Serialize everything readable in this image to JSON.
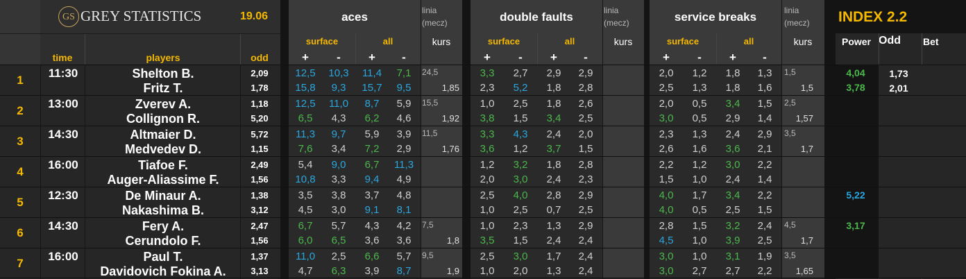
{
  "brand": {
    "monogram": "GS",
    "name": "GREY STATISTICS"
  },
  "date": "19.06",
  "index_title": "INDEX 2.2",
  "colors": {
    "yellow": "#f5b800",
    "blue": "#29a8e0",
    "green": "#4cb84c",
    "white": "#ffffff",
    "grey": "#d0d0d0"
  },
  "headers": {
    "time": "time",
    "players": "players",
    "odd": "odd",
    "aces": "aces",
    "double_faults": "double faults",
    "service_breaks": "service breaks",
    "linia": "linia",
    "mecz": "(mecz)",
    "kurs": "kurs",
    "surface": "surface",
    "all": "all",
    "plus": "+",
    "minus": "-",
    "power": "Power",
    "odd2": "Odd",
    "bet": "Bet"
  },
  "matches": [
    {
      "n": "1",
      "time": "11:30",
      "p1": "Shelton B.",
      "p2": "Fritz T.",
      "o1": "2,09",
      "o2": "1,78",
      "aces1": [
        [
          "12,5",
          "b"
        ],
        [
          "10,3",
          "b"
        ],
        [
          "11,4",
          "b"
        ],
        [
          "7,1",
          "g"
        ]
      ],
      "aces2": [
        [
          "15,8",
          "b"
        ],
        [
          "9,3",
          "b"
        ],
        [
          "15,7",
          "b"
        ],
        [
          "9,5",
          "b"
        ]
      ],
      "al": "24,5",
      "ak": "1,85",
      "df1": [
        [
          "3,3",
          "g"
        ],
        [
          "2,7",
          "w"
        ],
        [
          "2,9",
          "w"
        ],
        [
          "2,9",
          "w"
        ]
      ],
      "df2": [
        [
          "2,3",
          "w"
        ],
        [
          "5,2",
          "b"
        ],
        [
          "1,8",
          "w"
        ],
        [
          "2,8",
          "w"
        ]
      ],
      "dl": "",
      "dk": "",
      "sb1": [
        [
          "2,0",
          "w"
        ],
        [
          "1,2",
          "w"
        ],
        [
          "1,8",
          "w"
        ],
        [
          "1,3",
          "w"
        ]
      ],
      "sb2": [
        [
          "2,5",
          "w"
        ],
        [
          "1,3",
          "w"
        ],
        [
          "1,8",
          "w"
        ],
        [
          "1,6",
          "w"
        ]
      ],
      "sl": "1,5",
      "sk": "1,5",
      "pw1": [
        "4,04",
        "g"
      ],
      "pw2": [
        "3,78",
        "g"
      ],
      "od1": "1,73",
      "od2": "2,01"
    },
    {
      "n": "2",
      "time": "13:00",
      "p1": "Zverev A.",
      "p2": "Collignon R.",
      "o1": "1,18",
      "o2": "5,20",
      "aces1": [
        [
          "12,5",
          "b"
        ],
        [
          "11,0",
          "b"
        ],
        [
          "8,7",
          "b"
        ],
        [
          "5,9",
          "w"
        ]
      ],
      "aces2": [
        [
          "6,5",
          "g"
        ],
        [
          "4,3",
          "w"
        ],
        [
          "6,2",
          "g"
        ],
        [
          "4,6",
          "w"
        ]
      ],
      "al": "15,5",
      "ak": "1,92",
      "df1": [
        [
          "1,0",
          "w"
        ],
        [
          "2,5",
          "w"
        ],
        [
          "1,8",
          "w"
        ],
        [
          "2,6",
          "w"
        ]
      ],
      "df2": [
        [
          "3,8",
          "g"
        ],
        [
          "1,5",
          "w"
        ],
        [
          "3,4",
          "g"
        ],
        [
          "2,5",
          "w"
        ]
      ],
      "dl": "",
      "dk": "",
      "sb1": [
        [
          "2,0",
          "w"
        ],
        [
          "0,5",
          "w"
        ],
        [
          "3,4",
          "g"
        ],
        [
          "1,5",
          "w"
        ]
      ],
      "sb2": [
        [
          "3,0",
          "g"
        ],
        [
          "0,5",
          "w"
        ],
        [
          "2,9",
          "w"
        ],
        [
          "1,4",
          "w"
        ]
      ],
      "sl": "2,5",
      "sk": "1,57",
      "pw1": [
        "",
        ""
      ],
      "pw2": [
        "",
        ""
      ],
      "od1": "",
      "od2": ""
    },
    {
      "n": "3",
      "time": "14:30",
      "p1": "Altmaier D.",
      "p2": "Medvedev D.",
      "o1": "5,72",
      "o2": "1,15",
      "aces1": [
        [
          "11,3",
          "b"
        ],
        [
          "9,7",
          "b"
        ],
        [
          "5,9",
          "w"
        ],
        [
          "3,9",
          "w"
        ]
      ],
      "aces2": [
        [
          "7,6",
          "g"
        ],
        [
          "3,4",
          "w"
        ],
        [
          "7,2",
          "g"
        ],
        [
          "2,9",
          "w"
        ]
      ],
      "al": "11,5",
      "ak": "1,76",
      "df1": [
        [
          "3,3",
          "g"
        ],
        [
          "4,3",
          "b"
        ],
        [
          "2,4",
          "w"
        ],
        [
          "2,0",
          "w"
        ]
      ],
      "df2": [
        [
          "3,6",
          "g"
        ],
        [
          "1,2",
          "w"
        ],
        [
          "3,7",
          "g"
        ],
        [
          "1,5",
          "w"
        ]
      ],
      "dl": "",
      "dk": "",
      "sb1": [
        [
          "2,3",
          "w"
        ],
        [
          "1,3",
          "w"
        ],
        [
          "2,4",
          "w"
        ],
        [
          "2,9",
          "w"
        ]
      ],
      "sb2": [
        [
          "2,6",
          "w"
        ],
        [
          "1,6",
          "w"
        ],
        [
          "3,6",
          "g"
        ],
        [
          "2,1",
          "w"
        ]
      ],
      "sl": "3,5",
      "sk": "1,7",
      "pw1": [
        "",
        ""
      ],
      "pw2": [
        "",
        ""
      ],
      "od1": "",
      "od2": ""
    },
    {
      "n": "4",
      "time": "16:00",
      "p1": "Tiafoe F.",
      "p2": "Auger-Aliassime F.",
      "o1": "2,49",
      "o2": "1,56",
      "aces1": [
        [
          "5,4",
          "w"
        ],
        [
          "9,0",
          "b"
        ],
        [
          "6,7",
          "g"
        ],
        [
          "11,3",
          "b"
        ]
      ],
      "aces2": [
        [
          "10,8",
          "b"
        ],
        [
          "3,3",
          "w"
        ],
        [
          "9,4",
          "b"
        ],
        [
          "4,9",
          "w"
        ]
      ],
      "al": "",
      "ak": "",
      "df1": [
        [
          "1,2",
          "w"
        ],
        [
          "3,2",
          "g"
        ],
        [
          "1,8",
          "w"
        ],
        [
          "2,8",
          "w"
        ]
      ],
      "df2": [
        [
          "2,0",
          "w"
        ],
        [
          "3,0",
          "g"
        ],
        [
          "2,4",
          "w"
        ],
        [
          "2,3",
          "w"
        ]
      ],
      "dl": "",
      "dk": "",
      "sb1": [
        [
          "2,2",
          "w"
        ],
        [
          "1,2",
          "w"
        ],
        [
          "3,0",
          "g"
        ],
        [
          "2,2",
          "w"
        ]
      ],
      "sb2": [
        [
          "1,5",
          "w"
        ],
        [
          "1,0",
          "w"
        ],
        [
          "2,4",
          "w"
        ],
        [
          "1,4",
          "w"
        ]
      ],
      "sl": "",
      "sk": "",
      "pw1": [
        "",
        ""
      ],
      "pw2": [
        "",
        ""
      ],
      "od1": "",
      "od2": ""
    },
    {
      "n": "5",
      "time": "12:30",
      "p1": "De Minaur A.",
      "p2": "Nakashima B.",
      "o1": "1,38",
      "o2": "3,12",
      "aces1": [
        [
          "3,5",
          "w"
        ],
        [
          "3,8",
          "w"
        ],
        [
          "3,7",
          "w"
        ],
        [
          "4,8",
          "w"
        ]
      ],
      "aces2": [
        [
          "4,5",
          "w"
        ],
        [
          "3,0",
          "w"
        ],
        [
          "9,1",
          "b"
        ],
        [
          "8,1",
          "b"
        ]
      ],
      "al": "",
      "ak": "",
      "df1": [
        [
          "2,5",
          "w"
        ],
        [
          "4,0",
          "g"
        ],
        [
          "2,8",
          "w"
        ],
        [
          "2,9",
          "w"
        ]
      ],
      "df2": [
        [
          "1,0",
          "w"
        ],
        [
          "2,5",
          "w"
        ],
        [
          "0,7",
          "w"
        ],
        [
          "2,5",
          "w"
        ]
      ],
      "dl": "",
      "dk": "",
      "sb1": [
        [
          "4,0",
          "g"
        ],
        [
          "1,7",
          "w"
        ],
        [
          "3,4",
          "g"
        ],
        [
          "2,2",
          "w"
        ]
      ],
      "sb2": [
        [
          "4,0",
          "g"
        ],
        [
          "0,5",
          "w"
        ],
        [
          "2,5",
          "w"
        ],
        [
          "1,5",
          "w"
        ]
      ],
      "sl": "",
      "sk": "",
      "pw1": [
        "5,22",
        "b"
      ],
      "pw2": [
        "",
        ""
      ],
      "od1": "",
      "od2": ""
    },
    {
      "n": "6",
      "time": "14:30",
      "p1": "Fery A.",
      "p2": "Cerundolo F.",
      "o1": "2,47",
      "o2": "1,56",
      "aces1": [
        [
          "6,7",
          "g"
        ],
        [
          "5,7",
          "w"
        ],
        [
          "4,3",
          "w"
        ],
        [
          "4,2",
          "w"
        ]
      ],
      "aces2": [
        [
          "6,0",
          "g"
        ],
        [
          "6,5",
          "g"
        ],
        [
          "3,6",
          "w"
        ],
        [
          "3,6",
          "w"
        ]
      ],
      "al": "7,5",
      "ak": "1,8",
      "df1": [
        [
          "1,0",
          "w"
        ],
        [
          "2,3",
          "w"
        ],
        [
          "1,3",
          "w"
        ],
        [
          "2,9",
          "w"
        ]
      ],
      "df2": [
        [
          "3,5",
          "g"
        ],
        [
          "1,5",
          "w"
        ],
        [
          "2,4",
          "w"
        ],
        [
          "2,4",
          "w"
        ]
      ],
      "dl": "",
      "dk": "",
      "sb1": [
        [
          "2,8",
          "w"
        ],
        [
          "1,5",
          "w"
        ],
        [
          "3,2",
          "g"
        ],
        [
          "2,4",
          "w"
        ]
      ],
      "sb2": [
        [
          "4,5",
          "b"
        ],
        [
          "1,0",
          "w"
        ],
        [
          "3,9",
          "g"
        ],
        [
          "2,5",
          "w"
        ]
      ],
      "sl": "4,5",
      "sk": "1,7",
      "pw1": [
        "3,17",
        "g"
      ],
      "pw2": [
        "",
        ""
      ],
      "od1": "",
      "od2": ""
    },
    {
      "n": "7",
      "time": "16:00",
      "p1": "Paul T.",
      "p2": "Davidovich Fokina A.",
      "o1": "1,37",
      "o2": "3,13",
      "aces1": [
        [
          "11,0",
          "b"
        ],
        [
          "2,5",
          "w"
        ],
        [
          "6,6",
          "g"
        ],
        [
          "5,7",
          "w"
        ]
      ],
      "aces2": [
        [
          "4,7",
          "w"
        ],
        [
          "6,3",
          "g"
        ],
        [
          "3,9",
          "w"
        ],
        [
          "8,7",
          "b"
        ]
      ],
      "al": "9,5",
      "ak": "1,9",
      "df1": [
        [
          "2,5",
          "w"
        ],
        [
          "3,0",
          "g"
        ],
        [
          "1,7",
          "w"
        ],
        [
          "2,4",
          "w"
        ]
      ],
      "df2": [
        [
          "1,0",
          "w"
        ],
        [
          "2,0",
          "w"
        ],
        [
          "1,3",
          "w"
        ],
        [
          "2,4",
          "w"
        ]
      ],
      "dl": "",
      "dk": "",
      "sb1": [
        [
          "3,0",
          "g"
        ],
        [
          "1,0",
          "w"
        ],
        [
          "3,1",
          "g"
        ],
        [
          "1,9",
          "w"
        ]
      ],
      "sb2": [
        [
          "3,0",
          "g"
        ],
        [
          "2,7",
          "w"
        ],
        [
          "2,7",
          "w"
        ],
        [
          "2,2",
          "w"
        ]
      ],
      "sl": "3,5",
      "sk": "1,65",
      "pw1": [
        "",
        ""
      ],
      "pw2": [
        "",
        ""
      ],
      "od1": "",
      "od2": ""
    }
  ]
}
